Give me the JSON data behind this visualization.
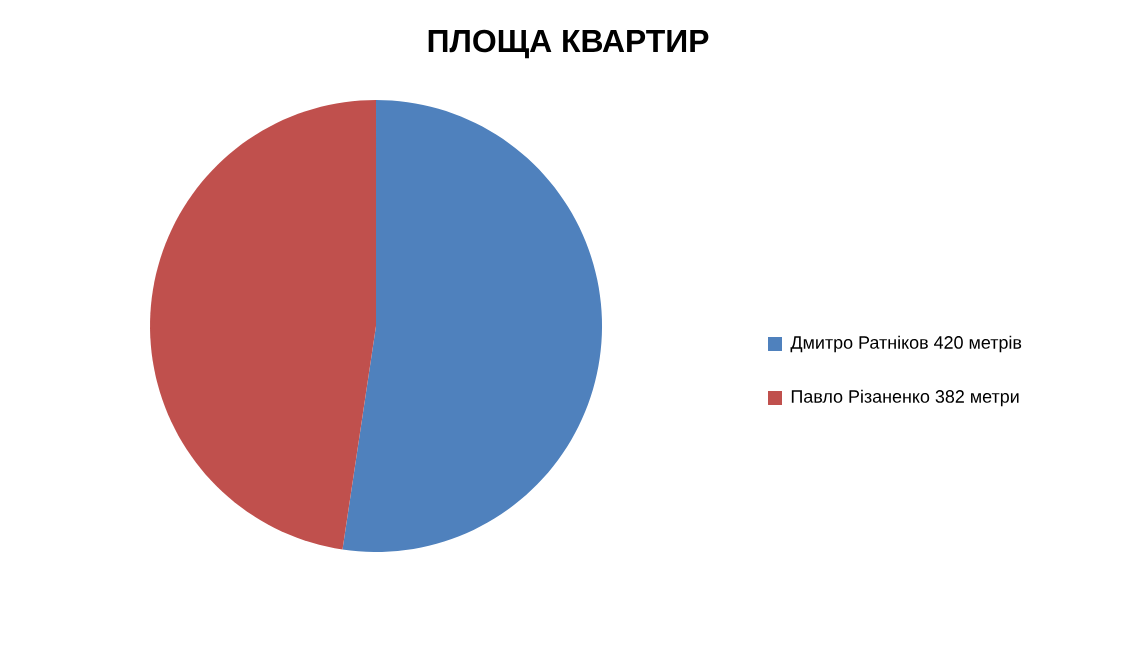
{
  "chart_data": {
    "type": "pie",
    "title": "ПЛОЩА КВАРТИР",
    "categories": [
      "Дмитро Ратніков 420 метрів",
      "Павло Різаненко 382 метри"
    ],
    "values": [
      420,
      382
    ],
    "colors": [
      "#4f81bd",
      "#c0504d"
    ],
    "legend": "right"
  }
}
